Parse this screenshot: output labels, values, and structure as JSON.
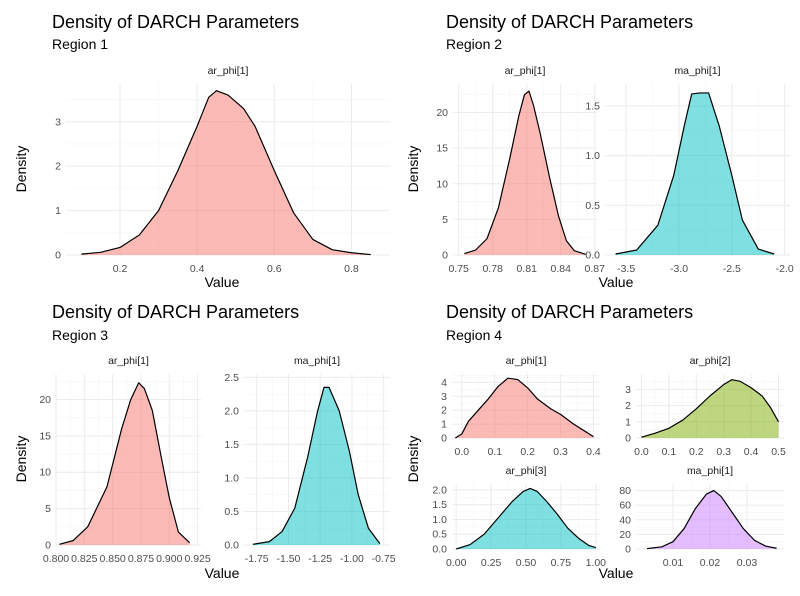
{
  "colors": {
    "pink": "#F8766D",
    "green": "#7CAE00",
    "teal": "#00BFC4",
    "purple": "#C77CFF",
    "grid_major": "#ebebeb",
    "grid_minor": "#f5f5f5",
    "line": "#000000"
  },
  "chart_data": [
    {
      "type": "area",
      "title": "Density of DARCH Parameters",
      "subtitle": "Region 1",
      "xlabel": "Value",
      "ylabel": "Density",
      "grid": true,
      "panels": [
        {
          "strip": "ar_phi[1]",
          "color": "pink",
          "xlim": [
            0.06,
            0.9
          ],
          "ylim": [
            0,
            3.85
          ],
          "xticks": [
            0.2,
            0.4,
            0.6,
            0.8
          ],
          "xtick_labels": [
            "0.2",
            "0.4",
            "0.6",
            "0.8"
          ],
          "yticks": [
            0,
            1,
            2,
            3
          ],
          "ytick_labels": [
            "0",
            "1",
            "2",
            "3"
          ],
          "curve": [
            [
              0.1,
              0.02
            ],
            [
              0.15,
              0.06
            ],
            [
              0.2,
              0.17
            ],
            [
              0.25,
              0.45
            ],
            [
              0.3,
              1.0
            ],
            [
              0.35,
              1.9
            ],
            [
              0.4,
              2.9
            ],
            [
              0.43,
              3.55
            ],
            [
              0.45,
              3.7
            ],
            [
              0.48,
              3.6
            ],
            [
              0.52,
              3.3
            ],
            [
              0.55,
              2.9
            ],
            [
              0.6,
              1.9
            ],
            [
              0.65,
              0.95
            ],
            [
              0.7,
              0.35
            ],
            [
              0.75,
              0.12
            ],
            [
              0.8,
              0.05
            ],
            [
              0.85,
              0.01
            ]
          ]
        }
      ]
    },
    {
      "type": "area",
      "title": "Density of DARCH Parameters",
      "subtitle": "Region 2",
      "xlabel": "Value",
      "ylabel": "Density",
      "grid": true,
      "panels": [
        {
          "strip": "ar_phi[1]",
          "color": "pink",
          "xlim": [
            0.745,
            0.872
          ],
          "ylim": [
            0,
            24
          ],
          "xticks": [
            0.75,
            0.78,
            0.81,
            0.84,
            0.87
          ],
          "xtick_labels": [
            "0.75",
            "0.78",
            "0.81",
            "0.84",
            "0.87"
          ],
          "yticks": [
            0,
            5,
            10,
            15,
            20
          ],
          "ytick_labels": [
            "0",
            "5",
            "10",
            "15",
            "20"
          ],
          "curve": [
            [
              0.755,
              0.2
            ],
            [
              0.765,
              0.7
            ],
            [
              0.775,
              2.3
            ],
            [
              0.785,
              6.6
            ],
            [
              0.795,
              13.5
            ],
            [
              0.803,
              19.5
            ],
            [
              0.808,
              22.5
            ],
            [
              0.812,
              23.0
            ],
            [
              0.816,
              21.0
            ],
            [
              0.822,
              17.0
            ],
            [
              0.83,
              11.0
            ],
            [
              0.838,
              5.5
            ],
            [
              0.845,
              2.0
            ],
            [
              0.852,
              0.6
            ],
            [
              0.862,
              0.1
            ]
          ]
        },
        {
          "strip": "ma_phi[1]",
          "color": "teal",
          "xlim": [
            -3.7,
            -1.95
          ],
          "ylim": [
            0,
            1.72
          ],
          "xticks": [
            -3.5,
            -3.0,
            -2.5,
            -2.0
          ],
          "xtick_labels": [
            "-3.5",
            "-3.0",
            "-2.5",
            "-2.0"
          ],
          "yticks": [
            0,
            0.5,
            1.0,
            1.5
          ],
          "ytick_labels": [
            "0.0",
            "0.5",
            "1.0",
            "1.5"
          ],
          "curve": [
            [
              -3.6,
              0.01
            ],
            [
              -3.4,
              0.05
            ],
            [
              -3.2,
              0.3
            ],
            [
              -3.05,
              0.8
            ],
            [
              -2.95,
              1.3
            ],
            [
              -2.88,
              1.62
            ],
            [
              -2.8,
              1.63
            ],
            [
              -2.72,
              1.63
            ],
            [
              -2.62,
              1.3
            ],
            [
              -2.5,
              0.8
            ],
            [
              -2.4,
              0.35
            ],
            [
              -2.25,
              0.06
            ],
            [
              -2.1,
              0.01
            ]
          ]
        }
      ]
    },
    {
      "type": "area",
      "title": "Density of DARCH Parameters",
      "subtitle": "Region 3",
      "xlabel": "Value",
      "ylabel": "Density",
      "grid": true,
      "panels": [
        {
          "strip": "ar_phi[1]",
          "color": "pink",
          "xlim": [
            0.8,
            0.928
          ],
          "ylim": [
            0,
            23.5
          ],
          "xticks": [
            0.8,
            0.825,
            0.85,
            0.875,
            0.9,
            0.925
          ],
          "xtick_labels": [
            "0.800",
            "0.825",
            "0.850",
            "0.875",
            "0.900",
            "0.925"
          ],
          "yticks": [
            0,
            5,
            10,
            15,
            20
          ],
          "ytick_labels": [
            "0",
            "5",
            "10",
            "15",
            "20"
          ],
          "curve": [
            [
              0.803,
              0.1
            ],
            [
              0.815,
              0.6
            ],
            [
              0.828,
              2.5
            ],
            [
              0.845,
              8.0
            ],
            [
              0.858,
              16.0
            ],
            [
              0.866,
              20.0
            ],
            [
              0.873,
              22.3
            ],
            [
              0.878,
              21.5
            ],
            [
              0.885,
              18.5
            ],
            [
              0.893,
              12.0
            ],
            [
              0.9,
              6.5
            ],
            [
              0.908,
              1.8
            ],
            [
              0.918,
              0.3
            ]
          ]
        },
        {
          "strip": "ma_phi[1]",
          "color": "teal",
          "xlim": [
            -1.85,
            -0.7
          ],
          "ylim": [
            0,
            2.55
          ],
          "xticks": [
            -1.75,
            -1.5,
            -1.25,
            -1.0,
            -0.75
          ],
          "xtick_labels": [
            "-1.75",
            "-1.50",
            "-1.25",
            "-1.00",
            "-0.75"
          ],
          "yticks": [
            0,
            0.5,
            1.0,
            1.5,
            2.0,
            2.5
          ],
          "ytick_labels": [
            "0.0",
            "0.5",
            "1.0",
            "1.5",
            "2.0",
            "2.5"
          ],
          "curve": [
            [
              -1.78,
              0.01
            ],
            [
              -1.65,
              0.05
            ],
            [
              -1.55,
              0.2
            ],
            [
              -1.45,
              0.55
            ],
            [
              -1.35,
              1.3
            ],
            [
              -1.27,
              2.0
            ],
            [
              -1.22,
              2.35
            ],
            [
              -1.18,
              2.35
            ],
            [
              -1.1,
              2.0
            ],
            [
              -1.02,
              1.4
            ],
            [
              -0.95,
              0.75
            ],
            [
              -0.87,
              0.25
            ],
            [
              -0.78,
              0.02
            ]
          ]
        }
      ]
    },
    {
      "type": "area",
      "title": "Density of DARCH Parameters",
      "subtitle": "Region 4",
      "xlabel": "Value",
      "ylabel": "Density",
      "grid": true,
      "panels": [
        {
          "strip": "ar_phi[1]",
          "color": "pink",
          "xlim": [
            -0.03,
            0.42
          ],
          "ylim": [
            0,
            4.6
          ],
          "xticks": [
            0.0,
            0.1,
            0.2,
            0.3,
            0.4
          ],
          "xtick_labels": [
            "0.0",
            "0.1",
            "0.2",
            "0.3",
            "0.4"
          ],
          "yticks": [
            0,
            1,
            2,
            3,
            4
          ],
          "ytick_labels": [
            "0",
            "1",
            "2",
            "3",
            "4"
          ],
          "curve": [
            [
              -0.02,
              0.0
            ],
            [
              0.0,
              0.3
            ],
            [
              0.02,
              1.2
            ],
            [
              0.05,
              2.0
            ],
            [
              0.08,
              2.8
            ],
            [
              0.11,
              3.7
            ],
            [
              0.14,
              4.3
            ],
            [
              0.17,
              4.2
            ],
            [
              0.2,
              3.6
            ],
            [
              0.23,
              2.8
            ],
            [
              0.27,
              2.1
            ],
            [
              0.3,
              1.7
            ],
            [
              0.34,
              1.0
            ],
            [
              0.38,
              0.4
            ],
            [
              0.4,
              0.1
            ]
          ]
        },
        {
          "strip": "ar_phi[2]",
          "color": "green",
          "xlim": [
            -0.02,
            0.52
          ],
          "ylim": [
            0,
            3.95
          ],
          "xticks": [
            0.0,
            0.1,
            0.2,
            0.3,
            0.4,
            0.5
          ],
          "xtick_labels": [
            "0.0",
            "0.1",
            "0.2",
            "0.3",
            "0.4",
            "0.5"
          ],
          "yticks": [
            0,
            1,
            2,
            3
          ],
          "ytick_labels": [
            "0",
            "1",
            "2",
            "3"
          ],
          "curve": [
            [
              0.0,
              0.05
            ],
            [
              0.05,
              0.3
            ],
            [
              0.1,
              0.6
            ],
            [
              0.15,
              1.1
            ],
            [
              0.2,
              1.8
            ],
            [
              0.25,
              2.6
            ],
            [
              0.3,
              3.3
            ],
            [
              0.33,
              3.6
            ],
            [
              0.36,
              3.5
            ],
            [
              0.4,
              3.1
            ],
            [
              0.44,
              2.6
            ],
            [
              0.47,
              1.9
            ],
            [
              0.5,
              1.0
            ]
          ]
        },
        {
          "strip": "ar_phi[3]",
          "color": "teal",
          "xlim": [
            -0.03,
            1.03
          ],
          "ylim": [
            0,
            2.2
          ],
          "xticks": [
            0.0,
            0.25,
            0.5,
            0.75,
            1.0
          ],
          "xtick_labels": [
            "0.00",
            "0.25",
            "0.50",
            "0.75",
            "1.00"
          ],
          "yticks": [
            0,
            0.5,
            1.0,
            1.5,
            2.0
          ],
          "ytick_labels": [
            "0.0",
            "0.5",
            "1.0",
            "1.5",
            "2.0"
          ],
          "curve": [
            [
              0.0,
              0.0
            ],
            [
              0.1,
              0.15
            ],
            [
              0.2,
              0.5
            ],
            [
              0.3,
              1.05
            ],
            [
              0.4,
              1.6
            ],
            [
              0.48,
              1.95
            ],
            [
              0.53,
              2.05
            ],
            [
              0.58,
              1.95
            ],
            [
              0.65,
              1.6
            ],
            [
              0.72,
              1.2
            ],
            [
              0.8,
              0.7
            ],
            [
              0.88,
              0.35
            ],
            [
              0.95,
              0.12
            ],
            [
              1.0,
              0.05
            ]
          ]
        },
        {
          "strip": "ma_phi[1]",
          "color": "purple",
          "xlim": [
            0.0,
            0.04
          ],
          "ylim": [
            0,
            89
          ],
          "xticks": [
            0.01,
            0.02,
            0.03
          ],
          "xtick_labels": [
            "0.01",
            "0.02",
            "0.03"
          ],
          "yticks": [
            0,
            20,
            40,
            60,
            80
          ],
          "ytick_labels": [
            "0",
            "20",
            "40",
            "60",
            "80"
          ],
          "curve": [
            [
              0.003,
              0.5
            ],
            [
              0.007,
              3.0
            ],
            [
              0.01,
              10.0
            ],
            [
              0.013,
              28.0
            ],
            [
              0.016,
              55.0
            ],
            [
              0.019,
              75.0
            ],
            [
              0.021,
              80.0
            ],
            [
              0.023,
              72.0
            ],
            [
              0.026,
              50.0
            ],
            [
              0.029,
              28.0
            ],
            [
              0.032,
              12.0
            ],
            [
              0.035,
              4.0
            ],
            [
              0.038,
              1.0
            ]
          ]
        }
      ]
    }
  ]
}
